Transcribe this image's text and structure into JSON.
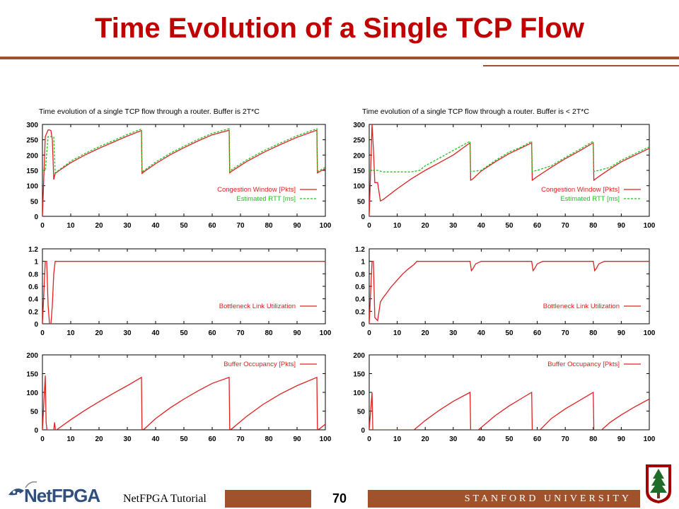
{
  "page": {
    "title": "Time Evolution of a Single TCP Flow",
    "footer_left": "NetFPGA Tutorial",
    "page_number": "70",
    "footer_right": "STANFORD UNIVERSITY",
    "logo_text": "NetFPGA"
  },
  "colors": {
    "title": "#c00000",
    "accent": "#a0522d",
    "red_series": "#e02020",
    "green_series": "#20c020"
  },
  "chart_data": [
    {
      "type": "line",
      "panel_title": "Time evolution of a single TCP flow through a router. Buffer is 2T*C",
      "xlim": [
        0,
        100
      ],
      "ylim": [
        0,
        300
      ],
      "xticks": [
        0,
        10,
        20,
        30,
        40,
        50,
        60,
        70,
        80,
        90,
        100
      ],
      "yticks": [
        0,
        50,
        100,
        150,
        200,
        250,
        300
      ],
      "legend_placement": "bottom-right",
      "series": [
        {
          "name": "Congestion Window [Pkts]",
          "color": "#e02020",
          "dashed": false,
          "x": [
            0,
            1,
            2,
            2.5,
            3,
            3.5,
            4,
            4.5,
            6,
            10,
            15,
            20,
            25,
            30,
            35,
            35.2,
            36,
            40,
            45,
            50,
            55,
            60,
            66,
            66.2,
            67,
            72,
            78,
            84,
            90,
            97,
            97.2,
            98,
            100
          ],
          "y": [
            0,
            260,
            282,
            282,
            280,
            250,
            120,
            140,
            150,
            175,
            200,
            222,
            242,
            262,
            280,
            140,
            146,
            172,
            200,
            224,
            246,
            266,
            281,
            142,
            148,
            178,
            208,
            234,
            258,
            281,
            142,
            146,
            155
          ]
        },
        {
          "name": "Estimated RTT     [ms]",
          "color": "#20c020",
          "dashed": true,
          "x": [
            0,
            1,
            2,
            2.5,
            3,
            4,
            4.5,
            6,
            10,
            15,
            20,
            25,
            30,
            35,
            35.2,
            36,
            40,
            45,
            50,
            55,
            60,
            66,
            66.2,
            67,
            72,
            78,
            84,
            90,
            97,
            97.2,
            98,
            100
          ],
          "y": [
            150,
            150,
            260,
            260,
            260,
            260,
            142,
            152,
            180,
            205,
            227,
            247,
            267,
            285,
            145,
            150,
            177,
            205,
            229,
            251,
            271,
            286,
            147,
            153,
            183,
            213,
            239,
            263,
            286,
            147,
            150,
            160
          ]
        }
      ]
    },
    {
      "type": "line",
      "panel_title": "Time evolution of a single TCP flow through a router. Buffer is < 2T*C",
      "xlim": [
        0,
        100
      ],
      "ylim": [
        0,
        300
      ],
      "xticks": [
        0,
        10,
        20,
        30,
        40,
        50,
        60,
        70,
        80,
        90,
        100
      ],
      "yticks": [
        0,
        50,
        100,
        150,
        200,
        250,
        300
      ],
      "legend_placement": "bottom-right",
      "series": [
        {
          "name": "Congestion Window [Pkts]",
          "color": "#e02020",
          "dashed": false,
          "x": [
            0,
            1,
            1.5,
            2,
            3,
            4,
            5,
            10,
            15,
            20,
            25,
            30,
            36,
            36.2,
            37,
            40,
            45,
            50,
            54,
            58,
            58.2,
            60,
            65,
            70,
            75,
            80,
            80.2,
            82,
            86,
            90,
            95,
            100
          ],
          "y": [
            0,
            300,
            220,
            110,
            110,
            50,
            55,
            90,
            122,
            150,
            175,
            200,
            240,
            118,
            122,
            148,
            178,
            205,
            222,
            240,
            118,
            130,
            160,
            188,
            213,
            240,
            118,
            130,
            155,
            178,
            200,
            222
          ]
        },
        {
          "name": "Estimated RTT     [ms]",
          "color": "#20c020",
          "dashed": true,
          "x": [
            0,
            1,
            2,
            3,
            5,
            10,
            15,
            18,
            20,
            25,
            30,
            36,
            36.2,
            37,
            40,
            45,
            50,
            54,
            58,
            58.2,
            60,
            65,
            70,
            75,
            80,
            80.2,
            82,
            86,
            90,
            95,
            100
          ],
          "y": [
            150,
            150,
            150,
            150,
            145,
            145,
            145,
            150,
            165,
            190,
            215,
            245,
            147,
            147,
            150,
            182,
            210,
            225,
            245,
            147,
            150,
            165,
            192,
            218,
            245,
            147,
            150,
            160,
            183,
            205,
            227
          ]
        }
      ]
    },
    {
      "type": "line",
      "xlim": [
        0,
        100
      ],
      "ylim": [
        0,
        1.2
      ],
      "xticks": [
        0,
        10,
        20,
        30,
        40,
        50,
        60,
        70,
        80,
        90,
        100
      ],
      "yticks": [
        0,
        0.2,
        0.4,
        0.6,
        0.8,
        1,
        1.2
      ],
      "legend_placement": "bottom-right",
      "series": [
        {
          "name": "Bottleneck Link Utilization",
          "color": "#e02020",
          "dashed": false,
          "x": [
            0,
            1,
            1.5,
            2,
            2.5,
            3,
            3.5,
            4,
            4.5,
            100
          ],
          "y": [
            0,
            1,
            1,
            0.3,
            0,
            0,
            0.3,
            0.8,
            1,
            1
          ]
        }
      ]
    },
    {
      "type": "line",
      "xlim": [
        0,
        100
      ],
      "ylim": [
        0,
        1.2
      ],
      "xticks": [
        0,
        10,
        20,
        30,
        40,
        50,
        60,
        70,
        80,
        90,
        100
      ],
      "yticks": [
        0,
        0.2,
        0.4,
        0.6,
        0.8,
        1,
        1.2
      ],
      "legend_placement": "bottom-right",
      "series": [
        {
          "name": "Bottleneck Link Utilization",
          "color": "#e02020",
          "dashed": false,
          "x": [
            0,
            1,
            1.5,
            2,
            3,
            4,
            5,
            6,
            8,
            10,
            12,
            14,
            16,
            17,
            36,
            36.5,
            37,
            38,
            40,
            58,
            58.5,
            59,
            60,
            62,
            80,
            80.5,
            81,
            82,
            84,
            100
          ],
          "y": [
            0,
            1,
            1,
            0.1,
            0.05,
            0.35,
            0.42,
            0.48,
            0.6,
            0.7,
            0.8,
            0.88,
            0.95,
            1,
            1,
            0.85,
            0.88,
            0.96,
            1,
            1,
            0.85,
            0.88,
            0.96,
            1,
            1,
            0.85,
            0.88,
            0.96,
            1,
            1
          ]
        }
      ]
    },
    {
      "type": "line",
      "xlim": [
        0,
        100
      ],
      "ylim": [
        0,
        200
      ],
      "xticks": [
        0,
        10,
        20,
        30,
        40,
        50,
        60,
        70,
        80,
        90,
        100
      ],
      "yticks": [
        0,
        50,
        100,
        150,
        200
      ],
      "legend_placement": "top-right",
      "series": [
        {
          "name": "Buffer Occupancy [Pkts]",
          "color": "#e02020",
          "dashed": false,
          "x": [
            0,
            1,
            1.3,
            1.6,
            2,
            4,
            4.3,
            4.6,
            5,
            10,
            15,
            20,
            25,
            30,
            35,
            35.2,
            36,
            40,
            45,
            50,
            55,
            60,
            66,
            66.2,
            67,
            72,
            78,
            84,
            90,
            97,
            97.2,
            98,
            100
          ],
          "y": [
            0,
            145,
            20,
            0,
            0,
            0,
            20,
            0,
            0,
            27,
            52,
            75,
            97,
            118,
            140,
            0,
            2,
            30,
            58,
            82,
            104,
            124,
            140,
            0,
            3,
            35,
            68,
            95,
            118,
            140,
            0,
            3,
            15
          ]
        }
      ]
    },
    {
      "type": "line",
      "xlim": [
        0,
        100
      ],
      "ylim": [
        0,
        200
      ],
      "xticks": [
        0,
        10,
        20,
        30,
        40,
        50,
        60,
        70,
        80,
        90,
        100
      ],
      "yticks": [
        0,
        50,
        100,
        150,
        200
      ],
      "legend_placement": "top-right",
      "series": [
        {
          "name": "Buffer Occupancy [Pkts]",
          "color": "#e02020",
          "dashed": false,
          "x": [
            0,
            1,
            1.3,
            2,
            16,
            20,
            25,
            30,
            36,
            36.2,
            39,
            45,
            50,
            54,
            58,
            58.2,
            61,
            65,
            70,
            75,
            80,
            80.2,
            83,
            86,
            90,
            95,
            100
          ],
          "y": [
            0,
            100,
            0,
            0,
            0,
            25,
            52,
            76,
            100,
            0,
            0,
            38,
            64,
            82,
            100,
            0,
            0,
            30,
            56,
            78,
            100,
            0,
            0,
            20,
            40,
            62,
            82
          ]
        }
      ]
    }
  ]
}
